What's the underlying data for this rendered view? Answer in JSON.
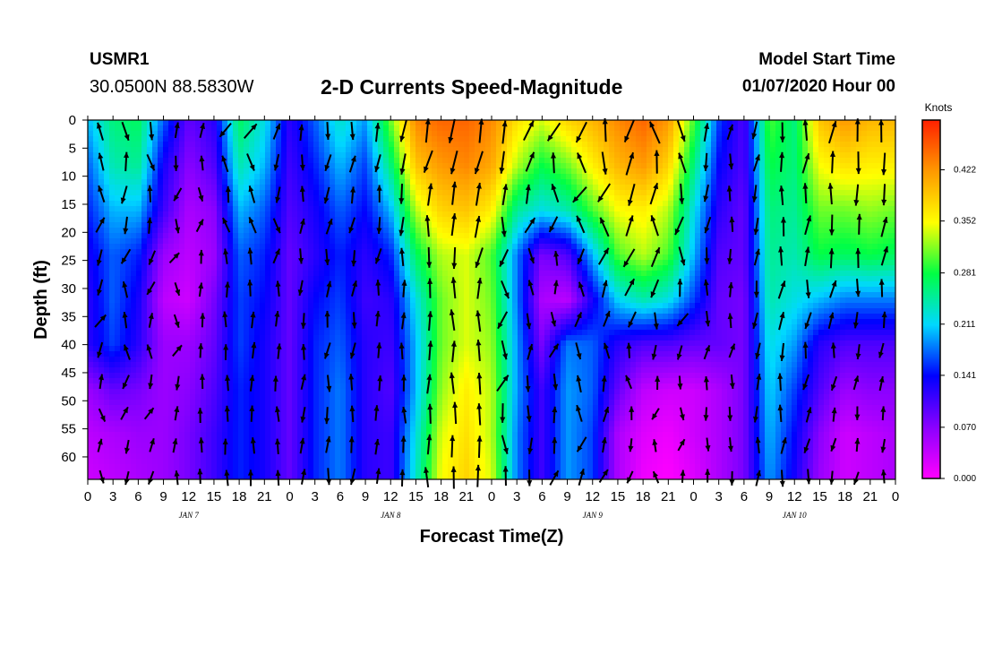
{
  "header": {
    "station": "USMR1",
    "coordinates": "30.0500N 88.5830W",
    "title": "2-D Currents Speed-Magnitude",
    "model_start_label": "Model Start Time",
    "model_start_value": "01/07/2020 Hour 00"
  },
  "chart_data": {
    "type": "heatmap",
    "title": "2-D Currents Speed-Magnitude",
    "xlabel": "Forecast Time(Z)",
    "ylabel": "Depth (ft)",
    "x_range_hours": [
      0,
      96
    ],
    "y_range_ft": [
      0,
      64
    ],
    "y_inverted": true,
    "x_tick_labels": [
      "0",
      "3",
      "6",
      "9",
      "12",
      "15",
      "18",
      "21",
      "0",
      "3",
      "6",
      "9",
      "12",
      "15",
      "18",
      "21",
      "0",
      "3",
      "6",
      "9",
      "12",
      "15",
      "18",
      "21",
      "0",
      "3",
      "6",
      "9",
      "12",
      "15",
      "18",
      "21",
      "0"
    ],
    "day_labels": [
      "JAN 7",
      "JAN 8",
      "JAN 9",
      "JAN 10"
    ],
    "y_tick_labels": [
      "0",
      "5",
      "10",
      "15",
      "20",
      "25",
      "30",
      "35",
      "40",
      "45",
      "50",
      "55",
      "60"
    ],
    "colorbar": {
      "unit": "Knots",
      "range": [
        0.0,
        0.49
      ],
      "tick_labels": [
        "0.422",
        "0.352",
        "0.281",
        "0.211",
        "0.141",
        "0.070",
        "0.000"
      ],
      "colors": [
        "#ff00ff",
        "#8a00ff",
        "#0000ff",
        "#00d8ff",
        "#00ff44",
        "#ffff00",
        "#ff9900",
        "#ff2000"
      ]
    },
    "speed_grid": {
      "hours": [
        0,
        3,
        6,
        9,
        12,
        15,
        18,
        21,
        24,
        27,
        30,
        33,
        36,
        39,
        42,
        45,
        48,
        51,
        54,
        57,
        60,
        63,
        66,
        69,
        72,
        75,
        78,
        81,
        84,
        87,
        90,
        93,
        96
      ],
      "depths_ft": [
        0,
        8,
        16,
        24,
        32,
        40,
        48,
        56,
        64
      ],
      "values_knots": [
        [
          0.2,
          0.26,
          0.27,
          0.17,
          0.09,
          0.12,
          0.27,
          0.22,
          0.12,
          0.17,
          0.23,
          0.19,
          0.31,
          0.43,
          0.45,
          0.45,
          0.43,
          0.37,
          0.34,
          0.38,
          0.4,
          0.43,
          0.45,
          0.42,
          0.3,
          0.16,
          0.1,
          0.3,
          0.26,
          0.39,
          0.42,
          0.4,
          0.4
        ],
        [
          0.17,
          0.24,
          0.25,
          0.13,
          0.07,
          0.1,
          0.24,
          0.2,
          0.11,
          0.15,
          0.2,
          0.16,
          0.26,
          0.39,
          0.42,
          0.43,
          0.41,
          0.33,
          0.28,
          0.31,
          0.36,
          0.4,
          0.42,
          0.38,
          0.26,
          0.14,
          0.1,
          0.28,
          0.26,
          0.35,
          0.37,
          0.36,
          0.36
        ],
        [
          0.15,
          0.2,
          0.2,
          0.11,
          0.05,
          0.07,
          0.2,
          0.17,
          0.1,
          0.13,
          0.17,
          0.14,
          0.2,
          0.33,
          0.38,
          0.39,
          0.36,
          0.25,
          0.22,
          0.24,
          0.3,
          0.35,
          0.36,
          0.33,
          0.22,
          0.12,
          0.09,
          0.26,
          0.25,
          0.31,
          0.31,
          0.32,
          0.31
        ],
        [
          0.13,
          0.17,
          0.15,
          0.06,
          0.04,
          0.06,
          0.17,
          0.15,
          0.09,
          0.12,
          0.15,
          0.12,
          0.15,
          0.27,
          0.33,
          0.34,
          0.3,
          0.18,
          0.08,
          0.1,
          0.2,
          0.3,
          0.33,
          0.3,
          0.2,
          0.1,
          0.09,
          0.25,
          0.24,
          0.28,
          0.27,
          0.28,
          0.27
        ],
        [
          0.12,
          0.17,
          0.13,
          0.04,
          0.03,
          0.08,
          0.16,
          0.14,
          0.09,
          0.14,
          0.16,
          0.11,
          0.12,
          0.22,
          0.31,
          0.34,
          0.31,
          0.18,
          0.05,
          0.04,
          0.13,
          0.21,
          0.24,
          0.22,
          0.16,
          0.09,
          0.08,
          0.24,
          0.22,
          0.2,
          0.18,
          0.18,
          0.18
        ],
        [
          0.12,
          0.16,
          0.12,
          0.06,
          0.06,
          0.09,
          0.16,
          0.13,
          0.09,
          0.15,
          0.17,
          0.12,
          0.11,
          0.2,
          0.31,
          0.34,
          0.32,
          0.19,
          0.08,
          0.18,
          0.17,
          0.12,
          0.1,
          0.1,
          0.09,
          0.09,
          0.08,
          0.22,
          0.19,
          0.12,
          0.1,
          0.1,
          0.1
        ],
        [
          0.06,
          0.09,
          0.08,
          0.06,
          0.07,
          0.1,
          0.15,
          0.13,
          0.09,
          0.15,
          0.18,
          0.12,
          0.1,
          0.2,
          0.32,
          0.36,
          0.33,
          0.19,
          0.11,
          0.19,
          0.17,
          0.09,
          0.04,
          0.03,
          0.03,
          0.05,
          0.08,
          0.21,
          0.16,
          0.1,
          0.06,
          0.07,
          0.07
        ],
        [
          0.04,
          0.05,
          0.06,
          0.06,
          0.08,
          0.11,
          0.15,
          0.13,
          0.09,
          0.15,
          0.18,
          0.12,
          0.11,
          0.22,
          0.34,
          0.37,
          0.33,
          0.18,
          0.11,
          0.19,
          0.16,
          0.05,
          0.02,
          0.01,
          0.03,
          0.05,
          0.08,
          0.2,
          0.14,
          0.07,
          0.03,
          0.04,
          0.05
        ],
        [
          0.03,
          0.04,
          0.05,
          0.06,
          0.08,
          0.11,
          0.15,
          0.13,
          0.09,
          0.15,
          0.18,
          0.12,
          0.11,
          0.23,
          0.35,
          0.38,
          0.34,
          0.18,
          0.11,
          0.19,
          0.16,
          0.05,
          0.01,
          0.0,
          0.02,
          0.05,
          0.08,
          0.19,
          0.13,
          0.06,
          0.03,
          0.04,
          0.05
        ]
      ]
    }
  }
}
